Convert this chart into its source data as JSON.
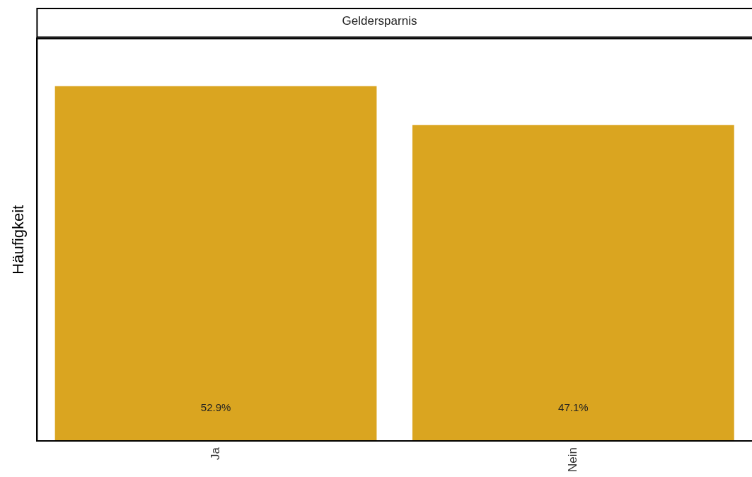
{
  "chart_data": {
    "type": "bar",
    "title": "Geldersparnis",
    "ylabel": "Häufigkeit",
    "categories": [
      "Ja",
      "Nein"
    ],
    "values": [
      52.9,
      47.1
    ],
    "value_labels": [
      "52.9%",
      "47.1%"
    ],
    "color": "#daa520",
    "grid": false,
    "legend": false,
    "tick_labels": "x"
  }
}
